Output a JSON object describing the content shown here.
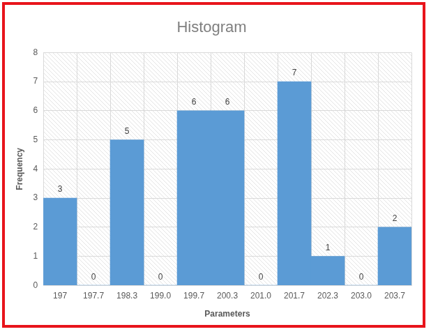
{
  "chart_data": {
    "type": "bar",
    "title": "Histogram",
    "x_label": "Parameters",
    "y_label": "Frequency",
    "categories": [
      "197",
      "197.7",
      "198.3",
      "199.0",
      "199.7",
      "200.3",
      "201.0",
      "201.7",
      "202.3",
      "203.0",
      "203.7"
    ],
    "values": [
      3,
      0,
      5,
      0,
      6,
      6,
      0,
      7,
      1,
      0,
      2
    ],
    "color": "#5b9bd5",
    "ylim": [
      0,
      8
    ],
    "yticks": [
      0,
      1,
      2,
      3,
      4,
      5,
      6,
      7,
      8
    ],
    "grid": true,
    "data_labels": true
  }
}
